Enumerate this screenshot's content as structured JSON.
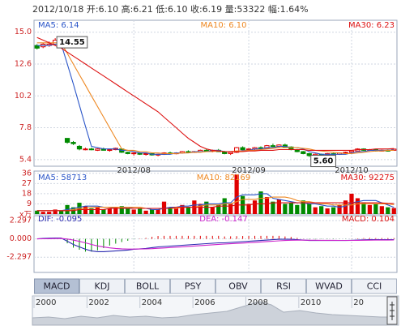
{
  "header": "2012/10/18 开:6.10 高:6.21 低:6.10 收:6.19 量:53322 幅:1.64%",
  "chart_data": [
    {
      "type": "candlestick",
      "categories": [
        null,
        null,
        null,
        null,
        null,
        null,
        null,
        null,
        null,
        null,
        null,
        null,
        null,
        null,
        null,
        null,
        "2012/08",
        null,
        null,
        null,
        null,
        null,
        null,
        null,
        null,
        null,
        null,
        null,
        null,
        null,
        null,
        null,
        null,
        null,
        null,
        "2012/09",
        null,
        null,
        null,
        null,
        null,
        null,
        null,
        null,
        null,
        null,
        null,
        null,
        null,
        null,
        null,
        null,
        "2012/10",
        null,
        null,
        null,
        null,
        null,
        null,
        null
      ],
      "ohlc": [
        [
          14.0,
          14.1,
          13.7,
          13.8
        ],
        [
          13.9,
          14.2,
          13.8,
          14.1
        ],
        [
          14.0,
          14.3,
          13.9,
          14.1
        ],
        [
          14.1,
          14.55,
          14.0,
          14.4
        ],
        [
          14.3,
          14.5,
          14.1,
          14.2
        ],
        [
          7.0,
          7.0,
          6.6,
          6.7
        ],
        [
          6.7,
          6.8,
          6.5,
          6.6
        ],
        [
          6.4,
          6.5,
          6.1,
          6.2
        ],
        [
          6.2,
          6.3,
          6.1,
          6.2
        ],
        [
          6.2,
          6.3,
          6.1,
          6.15
        ],
        [
          6.1,
          6.25,
          6.05,
          6.2
        ],
        [
          6.2,
          6.3,
          6.1,
          6.1
        ],
        [
          6.1,
          6.2,
          6.0,
          6.15
        ],
        [
          6.15,
          6.3,
          6.1,
          6.25
        ],
        [
          6.2,
          6.25,
          5.9,
          5.95
        ],
        [
          5.95,
          6.0,
          5.8,
          5.85
        ],
        [
          5.85,
          5.95,
          5.7,
          5.9
        ],
        [
          5.9,
          5.95,
          5.75,
          5.8
        ],
        [
          5.8,
          5.9,
          5.7,
          5.85
        ],
        [
          5.85,
          5.9,
          5.7,
          5.75
        ],
        [
          5.75,
          5.85,
          5.65,
          5.8
        ],
        [
          5.8,
          5.95,
          5.75,
          5.9
        ],
        [
          5.9,
          6.0,
          5.8,
          5.85
        ],
        [
          5.85,
          5.95,
          5.8,
          5.9
        ],
        [
          5.9,
          6.05,
          5.85,
          6.0
        ],
        [
          6.0,
          6.1,
          5.9,
          5.95
        ],
        [
          5.95,
          6.05,
          5.9,
          6.0
        ],
        [
          6.0,
          6.15,
          5.95,
          6.1
        ],
        [
          6.1,
          6.2,
          6.0,
          6.05
        ],
        [
          6.05,
          6.15,
          5.95,
          6.1
        ],
        [
          6.1,
          6.2,
          6.0,
          6.0
        ],
        [
          6.0,
          6.05,
          5.8,
          5.85
        ],
        [
          5.85,
          6.0,
          5.75,
          5.95
        ],
        [
          5.95,
          6.35,
          5.9,
          6.3
        ],
        [
          6.3,
          6.4,
          6.1,
          6.15
        ],
        [
          6.15,
          6.25,
          6.05,
          6.2
        ],
        [
          6.2,
          6.35,
          6.1,
          6.3
        ],
        [
          6.3,
          6.4,
          6.2,
          6.25
        ],
        [
          6.25,
          6.5,
          6.2,
          6.45
        ],
        [
          6.45,
          6.6,
          6.35,
          6.4
        ],
        [
          6.4,
          6.55,
          6.3,
          6.5
        ],
        [
          6.5,
          6.6,
          6.3,
          6.35
        ],
        [
          6.35,
          6.4,
          6.1,
          6.15
        ],
        [
          6.15,
          6.2,
          5.95,
          6.0
        ],
        [
          6.0,
          6.05,
          5.8,
          5.85
        ],
        [
          5.85,
          5.9,
          5.6,
          5.7
        ],
        [
          5.7,
          5.85,
          5.65,
          5.8
        ],
        [
          5.8,
          5.85,
          5.7,
          5.75
        ],
        [
          5.75,
          5.9,
          5.7,
          5.85
        ],
        [
          5.85,
          5.9,
          5.75,
          5.8
        ],
        [
          5.8,
          5.95,
          5.75,
          5.9
        ],
        [
          5.9,
          6.0,
          5.85,
          5.95
        ],
        [
          5.95,
          6.1,
          5.9,
          6.05
        ],
        [
          6.05,
          6.25,
          6.0,
          6.2
        ],
        [
          6.2,
          6.25,
          6.05,
          6.1
        ],
        [
          6.1,
          6.2,
          6.05,
          6.15
        ],
        [
          6.15,
          6.2,
          6.0,
          6.05
        ],
        [
          6.05,
          6.15,
          6.0,
          6.1
        ],
        [
          6.1,
          6.15,
          6.0,
          6.05
        ],
        [
          6.1,
          6.21,
          6.1,
          6.19
        ]
      ],
      "up_color": "#e00000",
      "down_color": "#008a00",
      "series": [
        {
          "name": "MA5: 6.14",
          "color": "#2a55c8",
          "values": [
            14.0,
            14.0,
            14.0,
            14.1,
            14.1,
            12.6,
            11.1,
            9.5,
            7.9,
            6.4,
            6.3,
            6.2,
            6.2,
            6.2,
            6.1,
            6.1,
            6.0,
            5.9,
            5.9,
            5.8,
            5.8,
            5.8,
            5.8,
            5.9,
            5.9,
            5.9,
            6.0,
            6.0,
            6.0,
            6.1,
            6.1,
            6.0,
            6.0,
            6.0,
            6.1,
            6.1,
            6.2,
            6.2,
            6.3,
            6.3,
            6.4,
            6.4,
            6.3,
            6.3,
            6.2,
            6.0,
            5.9,
            5.8,
            5.8,
            5.8,
            5.8,
            5.8,
            5.9,
            6.0,
            6.0,
            6.1,
            6.1,
            6.1,
            6.1,
            6.14
          ]
        },
        {
          "name": "MA10: 6.10",
          "color": "#ee8822",
          "values": [
            14.2,
            14.2,
            14.2,
            14.2,
            14.2,
            13.4,
            12.6,
            11.8,
            11.0,
            10.2,
            9.4,
            8.6,
            7.8,
            7.0,
            6.2,
            6.1,
            6.1,
            6.0,
            6.0,
            5.9,
            5.9,
            5.85,
            5.85,
            5.85,
            5.9,
            5.9,
            5.95,
            5.95,
            6.0,
            6.0,
            6.05,
            6.0,
            6.0,
            6.05,
            6.05,
            6.1,
            6.1,
            6.15,
            6.2,
            6.25,
            6.3,
            6.3,
            6.3,
            6.3,
            6.25,
            6.2,
            6.1,
            6.05,
            6.0,
            5.95,
            5.9,
            5.85,
            5.85,
            5.9,
            5.95,
            6.0,
            6.05,
            6.05,
            6.1,
            6.1
          ]
        },
        {
          "name": "MA30: 6.23",
          "color": "#dd1111",
          "values": [
            14.6,
            14.4,
            14.2,
            14.0,
            13.8,
            13.5,
            13.2,
            12.9,
            12.6,
            12.3,
            12.0,
            11.7,
            11.4,
            11.1,
            10.8,
            10.5,
            10.2,
            9.9,
            9.6,
            9.3,
            9.0,
            8.6,
            8.2,
            7.8,
            7.4,
            7.0,
            6.7,
            6.4,
            6.2,
            6.1,
            6.05,
            6.0,
            6.0,
            6.0,
            6.0,
            6.05,
            6.05,
            6.1,
            6.1,
            6.1,
            6.15,
            6.15,
            6.15,
            6.15,
            6.15,
            6.1,
            6.1,
            6.1,
            6.1,
            6.1,
            6.1,
            6.1,
            6.1,
            6.15,
            6.15,
            6.15,
            6.2,
            6.2,
            6.2,
            6.23
          ]
        }
      ],
      "annotations": [
        {
          "index": 3,
          "value": 14.55,
          "label": "14.55"
        },
        {
          "index": 45,
          "value": 5.6,
          "label": "5.60"
        }
      ],
      "ylim": [
        4.9,
        15.9
      ],
      "yticks": [
        {
          "value": 15,
          "label": "15.0"
        },
        12.6,
        10.2,
        7.8,
        5.4
      ],
      "grid": true
    },
    {
      "type": "bar",
      "unit": "x万",
      "values": [
        3,
        2,
        2,
        4,
        3,
        8,
        6,
        10,
        7,
        5,
        6,
        4,
        5,
        6,
        7,
        5,
        4,
        5,
        3,
        4,
        4,
        11,
        6,
        5,
        8,
        6,
        12,
        9,
        11,
        6,
        8,
        14,
        9,
        35,
        16,
        9,
        12,
        20,
        15,
        11,
        13,
        9,
        10,
        8,
        12,
        9,
        6,
        7,
        5,
        6,
        8,
        12,
        18,
        14,
        10,
        8,
        9,
        7,
        6,
        5.3322
      ],
      "series": [
        {
          "name": "MA5: 58713",
          "color": "#2a55c8",
          "values": [
            3,
            3,
            3,
            3,
            3,
            4,
            5,
            6,
            7,
            7,
            7,
            6,
            6,
            5,
            5,
            6,
            5,
            5,
            5,
            4,
            4,
            5,
            6,
            6,
            7,
            7,
            8,
            8,
            9,
            9,
            9,
            10,
            10,
            15,
            17,
            17,
            17,
            18,
            18,
            14,
            13,
            12,
            11,
            10,
            10,
            9,
            9,
            8,
            7,
            7,
            6,
            7,
            10,
            11,
            12,
            12,
            12,
            10,
            8,
            5.8713
          ]
        },
        {
          "name": "MA10: 82169",
          "color": "#ee8822",
          "values": [
            3,
            3,
            3,
            3,
            3,
            3,
            4,
            5,
            5,
            6,
            6,
            6,
            6,
            6,
            6,
            6,
            6,
            6,
            5,
            5,
            5,
            5,
            5,
            5,
            6,
            6,
            6,
            7,
            8,
            8,
            8,
            9,
            9,
            11,
            13,
            13,
            13,
            14,
            14,
            15,
            15,
            15,
            14,
            12,
            11,
            11,
            10,
            9,
            9,
            8,
            8,
            8,
            8,
            9,
            9,
            9,
            9,
            9,
            9,
            8.2169
          ]
        },
        {
          "name": "MA30: 92275",
          "color": "#dd1111",
          "values": [
            3,
            3,
            3,
            3,
            3,
            3,
            3,
            4,
            4,
            4,
            4,
            4,
            5,
            5,
            5,
            5,
            5,
            5,
            5,
            5,
            5,
            5,
            5,
            6,
            6,
            6,
            6,
            6,
            6,
            6,
            7,
            7,
            7,
            8,
            8,
            8,
            9,
            9,
            9,
            10,
            10,
            10,
            10,
            10,
            10,
            10,
            10,
            10,
            10,
            10,
            10,
            10,
            10,
            10,
            10,
            10,
            10,
            9.8,
            9.5,
            9.2275
          ]
        }
      ],
      "ylim": [
        0,
        38
      ],
      "yticks": [
        9,
        18,
        27,
        36
      ],
      "grid": true
    },
    {
      "type": "macd",
      "histogram_name": "MACD: 0.104",
      "histogram_color": "#dd1111",
      "histogram": [
        0,
        0.08,
        0.12,
        0.12,
        0.1,
        -0.56,
        -1.1,
        -1.36,
        -1.6,
        -1.6,
        -1.44,
        -1.16,
        -0.84,
        -0.6,
        -0.4,
        -0.24,
        -0.04,
        0.04,
        0.12,
        0.26,
        0.36,
        0.38,
        0.38,
        0.38,
        0.38,
        0.38,
        0.38,
        0.38,
        0.38,
        0.38,
        0.38,
        0.3,
        0.32,
        0.34,
        0.36,
        0.36,
        0.38,
        0.38,
        0.38,
        0.38,
        0.38,
        0.3,
        0.24,
        0.12,
        0.02,
        -0.06,
        -0.06,
        -0.04,
        -0.04,
        -0.04,
        -0.02,
        -0.02,
        0.02,
        0.06,
        0.1,
        0.12,
        0.1,
        0.1,
        0.1,
        0.104
      ],
      "series": [
        {
          "name": "DIF: -0.095",
          "color": "#2a2ab0",
          "values": [
            0,
            0.05,
            0.08,
            0.1,
            0.1,
            -0.3,
            -0.7,
            -1.0,
            -1.3,
            -1.5,
            -1.6,
            -1.6,
            -1.55,
            -1.5,
            -1.45,
            -1.4,
            -1.3,
            -1.25,
            -1.2,
            -1.1,
            -1.0,
            -0.95,
            -0.9,
            -0.85,
            -0.8,
            -0.75,
            -0.7,
            -0.65,
            -0.6,
            -0.55,
            -0.5,
            -0.5,
            -0.45,
            -0.4,
            -0.35,
            -0.3,
            -0.25,
            -0.2,
            -0.15,
            -0.1,
            -0.05,
            -0.05,
            -0.05,
            -0.1,
            -0.15,
            -0.2,
            -0.2,
            -0.2,
            -0.2,
            -0.2,
            -0.2,
            -0.2,
            -0.18,
            -0.15,
            -0.12,
            -0.1,
            -0.1,
            -0.1,
            -0.1,
            -0.095
          ]
        },
        {
          "name": "DEA: -0.147",
          "color": "#cc22cc",
          "values": [
            0,
            0.01,
            0.02,
            0.04,
            0.05,
            -0.02,
            -0.15,
            -0.32,
            -0.5,
            -0.7,
            -0.88,
            -1.02,
            -1.13,
            -1.2,
            -1.25,
            -1.28,
            -1.28,
            -1.27,
            -1.26,
            -1.23,
            -1.18,
            -1.14,
            -1.09,
            -1.04,
            -0.99,
            -0.94,
            -0.89,
            -0.84,
            -0.79,
            -0.74,
            -0.69,
            -0.65,
            -0.61,
            -0.57,
            -0.53,
            -0.48,
            -0.44,
            -0.39,
            -0.34,
            -0.29,
            -0.24,
            -0.2,
            -0.17,
            -0.16,
            -0.16,
            -0.17,
            -0.17,
            -0.18,
            -0.18,
            -0.18,
            -0.19,
            -0.19,
            -0.19,
            -0.18,
            -0.17,
            -0.16,
            -0.15,
            -0.15,
            -0.15,
            -0.147
          ]
        }
      ],
      "ylim": [
        -4.2,
        2.9
      ],
      "yticks": [
        2.297,
        {
          "value": 0,
          "label": "0.000"
        },
        -2.297
      ],
      "grid": true
    }
  ],
  "tabs": [
    "MACD",
    "KDJ",
    "BOLL",
    "PSY",
    "OBV",
    "RSI",
    "WVAD",
    "CCI"
  ],
  "selected_tab": 0,
  "navigator": {
    "years": [
      "2000",
      "2002",
      "2004",
      "2006",
      "2008",
      "2010",
      "20"
    ]
  }
}
